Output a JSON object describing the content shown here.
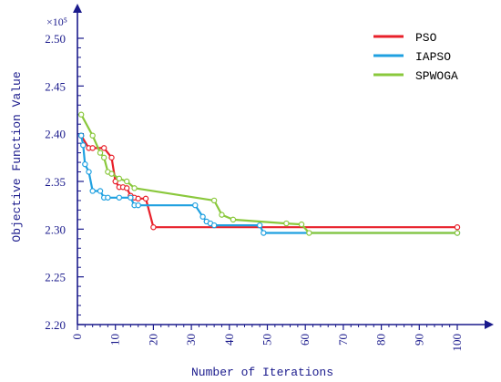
{
  "chart_data": {
    "type": "line",
    "xlabel": "Number of Iterations",
    "ylabel": "Objective Function Value",
    "multiplier_label": "×10⁵",
    "xlim": [
      0,
      105
    ],
    "ylim": [
      2.2,
      2.52
    ],
    "x_ticks": [
      0,
      10,
      20,
      30,
      40,
      50,
      60,
      70,
      80,
      90,
      100
    ],
    "y_ticks": [
      {
        "value": 2.2,
        "label": "2.20"
      },
      {
        "value": 2.25,
        "label": "2.25"
      },
      {
        "value": 2.3,
        "label": "2.30"
      },
      {
        "value": 2.35,
        "label": "2.35"
      },
      {
        "value": 2.4,
        "label": "2.40"
      },
      {
        "value": 2.45,
        "label": "2.45"
      },
      {
        "value": 2.5,
        "label": "2.50"
      }
    ],
    "legend_position": "top-right",
    "series": [
      {
        "name": "PSO",
        "color": "#e8202a",
        "points": [
          [
            1,
            2.398
          ],
          [
            3,
            2.385
          ],
          [
            4,
            2.385
          ],
          [
            7,
            2.385
          ],
          [
            9,
            2.375
          ],
          [
            10,
            2.35
          ],
          [
            11,
            2.344
          ],
          [
            12,
            2.344
          ],
          [
            13,
            2.343
          ],
          [
            14,
            2.335
          ],
          [
            15,
            2.333
          ],
          [
            16,
            2.332
          ],
          [
            18,
            2.332
          ],
          [
            20,
            2.302
          ],
          [
            100,
            2.302
          ]
        ]
      },
      {
        "name": "IAPSO",
        "color": "#1fa0e0",
        "points": [
          [
            1,
            2.398
          ],
          [
            1.5,
            2.388
          ],
          [
            2,
            2.368
          ],
          [
            3,
            2.36
          ],
          [
            4,
            2.34
          ],
          [
            6,
            2.34
          ],
          [
            7,
            2.333
          ],
          [
            8,
            2.333
          ],
          [
            11,
            2.333
          ],
          [
            14,
            2.333
          ],
          [
            15,
            2.325
          ],
          [
            16,
            2.325
          ],
          [
            31,
            2.325
          ],
          [
            33,
            2.313
          ],
          [
            34,
            2.308
          ],
          [
            35,
            2.306
          ],
          [
            36,
            2.304
          ],
          [
            48,
            2.304
          ],
          [
            49,
            2.296
          ],
          [
            100,
            2.296
          ]
        ]
      },
      {
        "name": "SPWOGA",
        "color": "#8ac83c",
        "points": [
          [
            1,
            2.42
          ],
          [
            4,
            2.398
          ],
          [
            6,
            2.38
          ],
          [
            7,
            2.375
          ],
          [
            8,
            2.36
          ],
          [
            9,
            2.358
          ],
          [
            11,
            2.353
          ],
          [
            13,
            2.35
          ],
          [
            15,
            2.343
          ],
          [
            36,
            2.33
          ],
          [
            38,
            2.315
          ],
          [
            41,
            2.31
          ],
          [
            55,
            2.306
          ],
          [
            59,
            2.305
          ],
          [
            61,
            2.296
          ],
          [
            100,
            2.296
          ]
        ]
      }
    ]
  }
}
